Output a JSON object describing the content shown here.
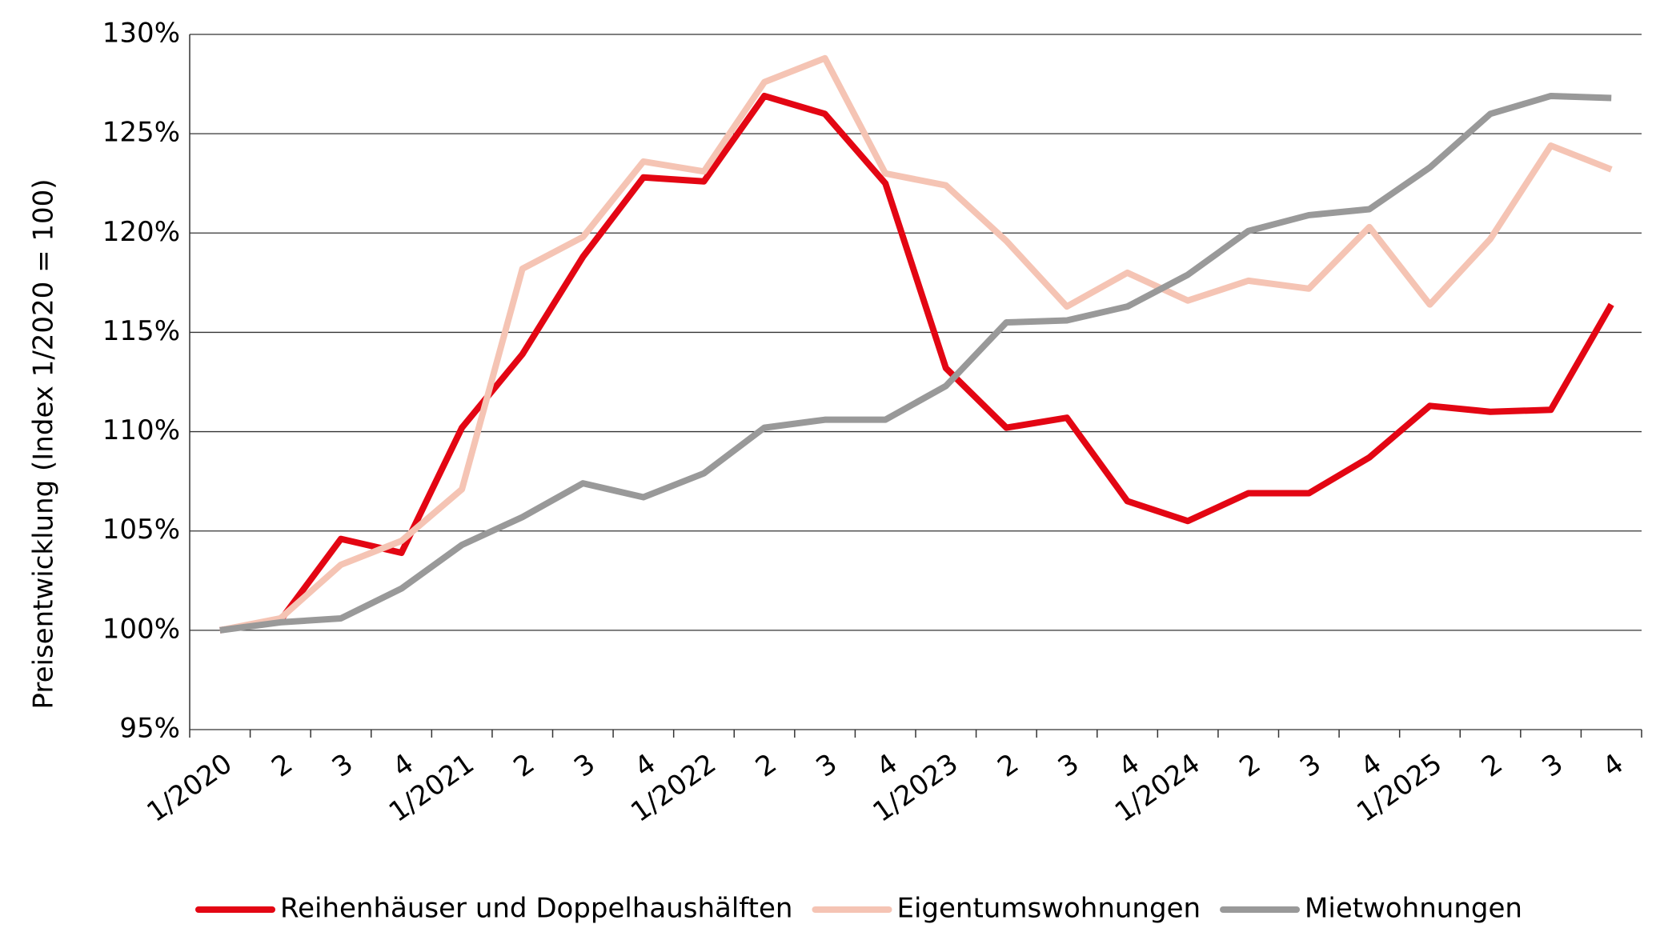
{
  "chart_data": {
    "type": "line",
    "y_label": "Preisentwicklung  (Index 1/2020 = 100)",
    "categories": [
      "1/2020",
      "2",
      "3",
      "4",
      "1/2021",
      "2",
      "3",
      "4",
      "1/2022",
      "2",
      "3",
      "4",
      "1/2023",
      "2",
      "3",
      "4",
      "1/2024",
      "2",
      "3",
      "4",
      "1/2025",
      "2",
      "3",
      "4"
    ],
    "series": [
      {
        "name": "Reihenhäuser und Doppelhaushälften",
        "color": "#e30613",
        "values": [
          100.0,
          100.5,
          104.6,
          103.9,
          110.2,
          113.9,
          118.8,
          122.8,
          122.6,
          126.9,
          126.0,
          122.5,
          113.2,
          110.2,
          110.7,
          106.5,
          105.5,
          106.9,
          106.9,
          108.7,
          111.3,
          111.0,
          111.1,
          116.4
        ]
      },
      {
        "name": "Eigentumswohnungen",
        "color": "#f5c4b4",
        "values": [
          100.0,
          100.6,
          103.3,
          104.5,
          107.1,
          118.2,
          119.8,
          123.6,
          123.1,
          127.6,
          128.8,
          123.0,
          122.4,
          119.6,
          116.3,
          118.0,
          116.6,
          117.6,
          117.2,
          120.3,
          116.4,
          119.7,
          124.4,
          123.2
        ]
      },
      {
        "name": "Mietwohnungen",
        "color": "#999999",
        "values": [
          100.0,
          100.4,
          100.6,
          102.1,
          104.3,
          105.7,
          107.4,
          106.7,
          107.9,
          110.2,
          110.6,
          110.6,
          112.3,
          115.5,
          115.6,
          116.3,
          117.9,
          120.1,
          120.9,
          121.2,
          123.3,
          126.0,
          126.9,
          126.8
        ]
      }
    ],
    "ylim": [
      95,
      130
    ],
    "yticks": [
      {
        "value": 95,
        "label": "95%"
      },
      {
        "value": 100,
        "label": "100%"
      },
      {
        "value": 105,
        "label": "105%"
      },
      {
        "value": 110,
        "label": "110%"
      },
      {
        "value": 115,
        "label": "115%"
      },
      {
        "value": 120,
        "label": "120%"
      },
      {
        "value": 125,
        "label": "125%"
      },
      {
        "value": 130,
        "label": "130%"
      }
    ],
    "grid": true,
    "legend": "bottom"
  }
}
